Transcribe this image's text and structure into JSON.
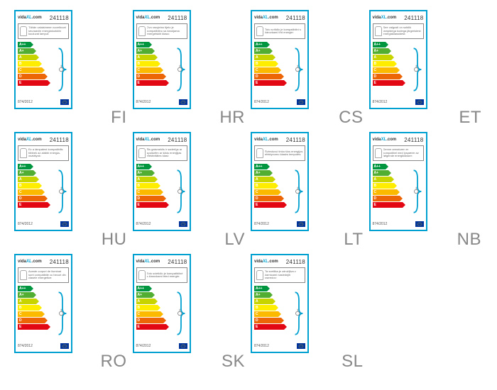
{
  "product_number": "241118",
  "brand_prefix": "vida",
  "brand_accent": "XL",
  "brand_suffix": ".com",
  "regulation": "874/2012",
  "border_color": "#00a0d0",
  "energy_classes": [
    {
      "label": "A++",
      "color": "#009640",
      "width": 18
    },
    {
      "label": "A+",
      "color": "#52ae32",
      "width": 22
    },
    {
      "label": "A",
      "color": "#c8d400",
      "width": 26
    },
    {
      "label": "B",
      "color": "#ffed00",
      "width": 30
    },
    {
      "label": "C",
      "color": "#fbba00",
      "width": 34
    },
    {
      "label": "D",
      "color": "#ec6608",
      "width": 38
    },
    {
      "label": "E",
      "color": "#e30613",
      "width": 42
    }
  ],
  "bracket_color": "#00a0d0",
  "cards": [
    {
      "lang": "FI",
      "desc": "Tähän valaisimeen soveltuvat seuraaviin energialuokkiin kuuluvat lamput:"
    },
    {
      "lang": "HR",
      "desc": "Ovo rasvjetno tijelo je kompatibilno sa žaruljama energetskih klasa:"
    },
    {
      "lang": "CS",
      "desc": "Toto svítidlo je kompatibilní s žárovkami tříd energie:"
    },
    {
      "lang": "ET",
      "desc": "See valgusti on sobilik lampidega kodega järgmistest energiaklassidest:"
    },
    {
      "lang": "HU",
      "desc": "Ez a lámpatest kompatibilis többek az alábbi energia-osztályok:"
    },
    {
      "lang": "LV",
      "desc": "Šis gaismeklis ir saderīgs ar spuldzēm ar šādu enerģijas efektivitātes klasi:"
    },
    {
      "lang": "LT",
      "desc": "Šviestuvui tinka šios energijos efektyvumo klasės lemputės:"
    },
    {
      "lang": "NB",
      "desc": "Denne armaturen er kompatibel med lyspærer av følgende energiklasser:"
    },
    {
      "lang": "RO",
      "desc": "Aceste corpuri de iluminat sunt compatibile cu becuri din clasele energetice:"
    },
    {
      "lang": "SK",
      "desc": "Toto svietidlo je kompatibilné s žiarovkami tried energie:"
    },
    {
      "lang": "SL",
      "desc": "Ta svetilka je združljiva z žarnicami naslednjih razredov:"
    }
  ]
}
